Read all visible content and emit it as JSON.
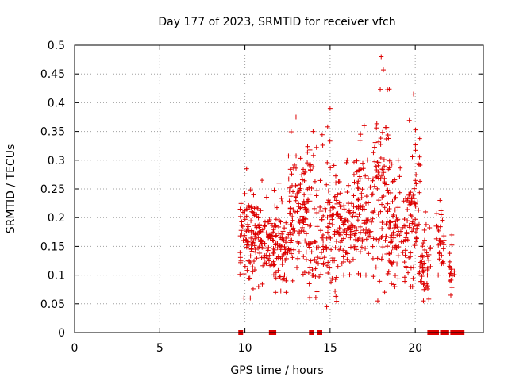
{
  "chart_data": {
    "type": "scatter",
    "title": "Day 177 of 2023, SRMTID for receiver vfch",
    "xlabel": "GPS time / hours",
    "ylabel": "SRMTID / TECUs",
    "xlim": [
      0,
      24
    ],
    "ylim": [
      0,
      0.5
    ],
    "xticks": [
      0,
      5,
      10,
      15,
      20
    ],
    "xtick_labels": [
      "0",
      "5",
      "10",
      "15",
      "20"
    ],
    "yticks": [
      0,
      0.05,
      0.1,
      0.15,
      0.2,
      0.25,
      0.3,
      0.35,
      0.4,
      0.45,
      0.5
    ],
    "ytick_labels": [
      "0",
      "0.05",
      "0.1",
      "0.15",
      "0.2",
      "0.25",
      "0.3",
      "0.35",
      "0.4",
      "0.45",
      "0.5"
    ],
    "grid": true,
    "marker": "+",
    "color": "#dd0000",
    "zero_markers_x": [
      9.75,
      11.55,
      11.7,
      13.9,
      14.4,
      20.85,
      20.95,
      21.05,
      21.15,
      21.25,
      21.6,
      21.75,
      21.85,
      22.2,
      22.35,
      22.5,
      22.6,
      22.75
    ],
    "envelope": [
      {
        "start": 9.7,
        "end": 10.5,
        "y_min": 0.06,
        "y_max": 0.285,
        "count": 70
      },
      {
        "start": 10.5,
        "end": 11.5,
        "y_min": 0.08,
        "y_max": 0.265,
        "count": 80
      },
      {
        "start": 11.5,
        "end": 12.5,
        "y_min": 0.07,
        "y_max": 0.26,
        "count": 80
      },
      {
        "start": 12.5,
        "end": 13.5,
        "y_min": 0.09,
        "y_max": 0.375,
        "count": 90
      },
      {
        "start": 13.5,
        "end": 14.5,
        "y_min": 0.06,
        "y_max": 0.35,
        "count": 80
      },
      {
        "start": 14.5,
        "end": 15.5,
        "y_min": 0.045,
        "y_max": 0.39,
        "count": 80
      },
      {
        "start": 15.5,
        "end": 16.5,
        "y_min": 0.1,
        "y_max": 0.3,
        "count": 80
      },
      {
        "start": 16.5,
        "end": 17.5,
        "y_min": 0.1,
        "y_max": 0.36,
        "count": 80
      },
      {
        "start": 17.5,
        "end": 18.5,
        "y_min": 0.055,
        "y_max": 0.48,
        "count": 95
      },
      {
        "start": 18.5,
        "end": 19.5,
        "y_min": 0.08,
        "y_max": 0.3,
        "count": 80
      },
      {
        "start": 19.5,
        "end": 20.3,
        "y_min": 0.08,
        "y_max": 0.415,
        "count": 70
      },
      {
        "start": 20.3,
        "end": 20.9,
        "y_min": 0.055,
        "y_max": 0.21,
        "count": 40
      },
      {
        "start": 21.2,
        "end": 21.7,
        "y_min": 0.1,
        "y_max": 0.23,
        "count": 30
      },
      {
        "start": 22.0,
        "end": 22.3,
        "y_min": 0.065,
        "y_max": 0.17,
        "count": 15
      }
    ]
  }
}
